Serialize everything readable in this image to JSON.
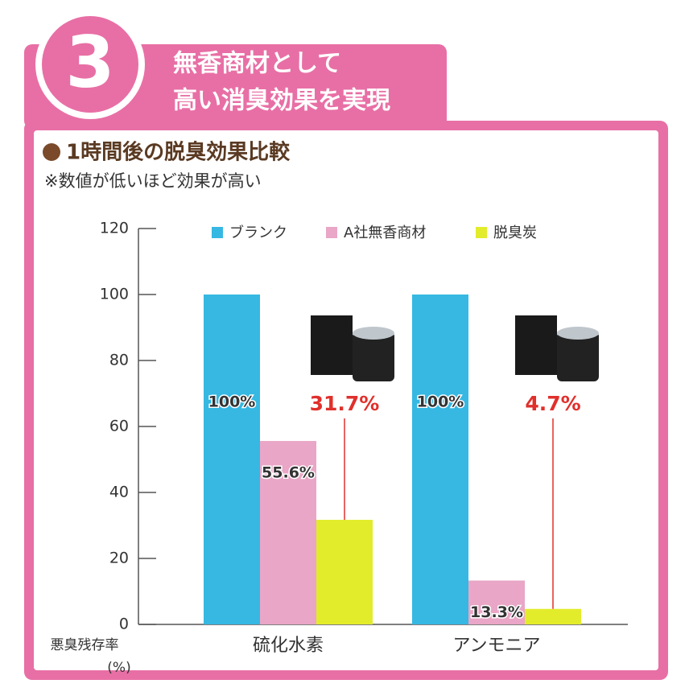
{
  "header": {
    "number": "3",
    "title_lines": [
      "無香商材として",
      "高い消臭効果を実現"
    ]
  },
  "chart_data": {
    "type": "bar",
    "title": "1時間後の脱臭効果比較",
    "subtitle": "※数値が低いほど効果が高い",
    "y_label": "悪臭残存率",
    "y_unit": "(%)",
    "categories": [
      "硫化水素",
      "アンモニア"
    ],
    "series": [
      {
        "name": "ブランク",
        "color": "#36b8e2",
        "label_color": "#333333",
        "values": [
          100,
          100
        ],
        "value_labels": [
          "100%",
          "100%"
        ]
      },
      {
        "name": "A社無香商材",
        "color": "#e9a6c6",
        "label_color": "#333333",
        "values": [
          55.6,
          13.3
        ],
        "value_labels": [
          "55.6%",
          "13.3%"
        ]
      },
      {
        "name": "脱臭炭",
        "color": "#e2ec2b",
        "label_color": "#e0302c",
        "values": [
          31.7,
          4.7
        ],
        "value_labels": [
          "31.7%",
          "4.7%"
        ]
      }
    ],
    "ylim": [
      0,
      120
    ],
    "yticks": [
      0,
      20,
      40,
      60,
      80,
      100,
      120
    ]
  }
}
